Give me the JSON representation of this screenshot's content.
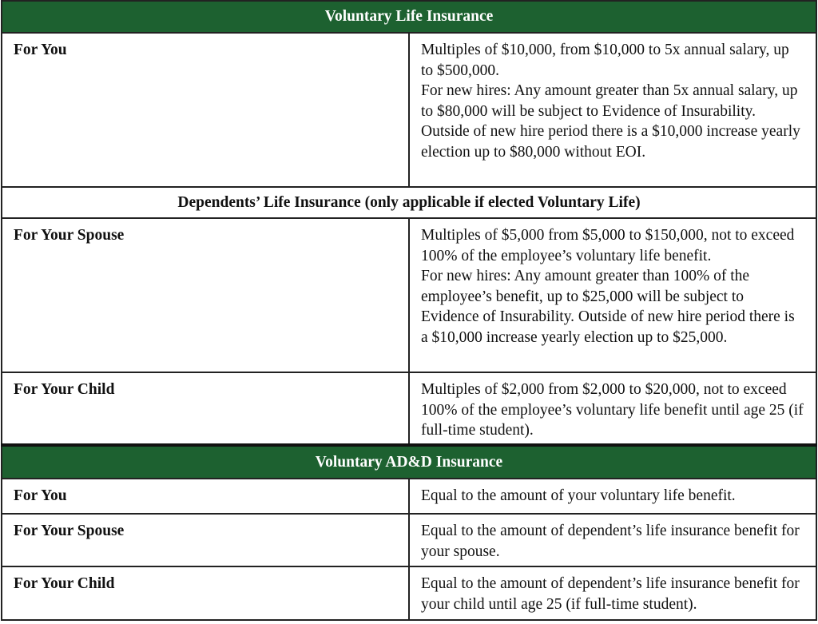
{
  "table": {
    "sections": [
      {
        "title": "Voluntary Life Insurance",
        "style": "green",
        "rows": [
          {
            "label": "For You",
            "text": [
              "Multiples of $10,000, from $10,000 to 5x annual salary, up to $500,000.",
              "For new hires: Any amount greater than 5x annual salary, up to $80,000 will be subject to Evidence of Insurability. Outside of new hire period there is a $10,000 increase yearly election up to $80,000 without EOI."
            ]
          }
        ]
      },
      {
        "title": "Dependents’  Life Insurance (only applicable if elected Voluntary Life)",
        "style": "plain",
        "rows": [
          {
            "label": "For Your Spouse",
            "text": [
              "Multiples of $5,000 from $5,000 to $150,000, not to exceed 100% of the employee’s voluntary life benefit.",
              "For new hires: Any amount greater than 100% of the employee’s benefit, up to $25,000 will be subject to Evidence of Insurability. Outside of new hire period there is a $10,000 increase yearly election up to $25,000."
            ]
          },
          {
            "label": "For Your Child",
            "text": [
              "Multiples of $2,000 from $2,000 to $20,000, not to exceed 100% of the employee’s voluntary life benefit until age 25 (if full-time student)."
            ]
          }
        ]
      },
      {
        "title": "Voluntary AD&D Insurance",
        "style": "green",
        "rows": [
          {
            "label": "For You",
            "text": [
              "Equal to the amount of your voluntary life benefit."
            ]
          },
          {
            "label": "For Your Spouse",
            "text": [
              "Equal to the amount of dependent’s life insurance benefit for your spouse."
            ]
          },
          {
            "label": "For Your Child",
            "text": [
              "Equal to the amount of dependent’s life insurance benefit for your child until age 25 (if full-time student)."
            ]
          }
        ]
      }
    ]
  }
}
